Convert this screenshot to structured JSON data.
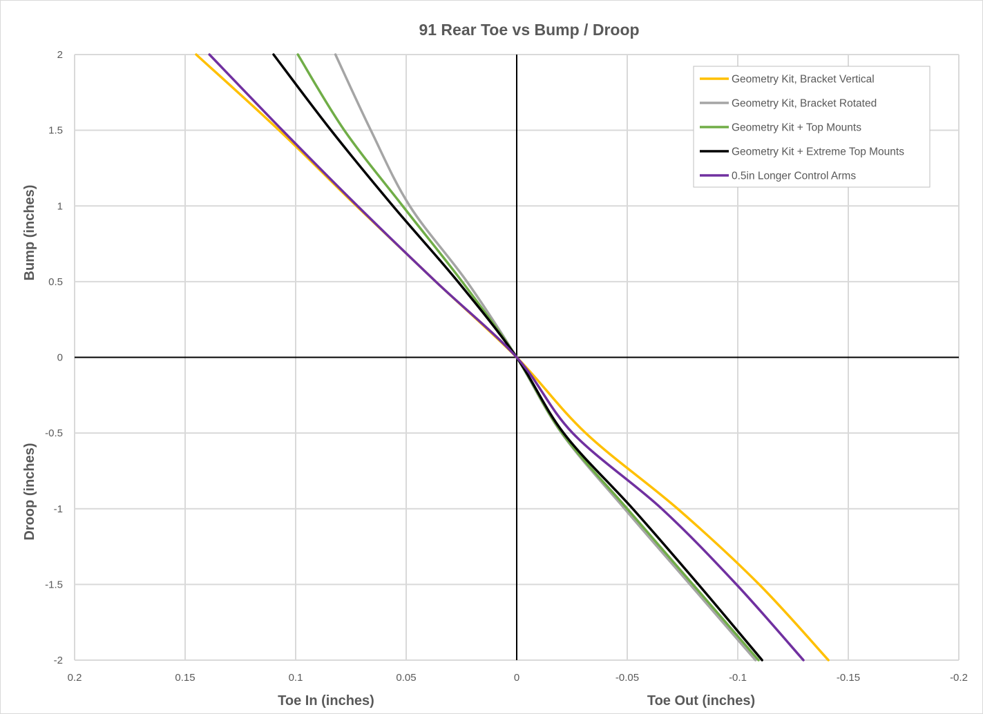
{
  "chart_data": {
    "type": "line",
    "title": "91 Rear Toe vs Bump / Droop",
    "xlabel_left": "Toe In (inches)",
    "xlabel_right": "Toe Out (inches)",
    "ylabel_top": "Bump (inches)",
    "ylabel_bottom": "Droop (inches)",
    "xlim": [
      0.2,
      -0.2
    ],
    "ylim": [
      -2,
      2
    ],
    "x_reversed": true,
    "grid": true,
    "legend_placement": "top-right",
    "x_ticks": [
      0.2,
      0.15,
      0.1,
      0.05,
      0,
      -0.05,
      -0.1,
      -0.15,
      -0.2
    ],
    "x_tick_labels": [
      "0.2",
      "0.15",
      "0.1",
      "0.05",
      "0",
      "-0.05",
      "-0.1",
      "-0.15",
      "-0.2"
    ],
    "y_ticks": [
      2,
      1.5,
      1,
      0.5,
      0,
      -0.5,
      -1,
      -1.5,
      -2
    ],
    "y_tick_labels": [
      "2",
      "1.5",
      "1",
      "0.5",
      "0",
      "-0.5",
      "-1",
      "-1.5",
      "-2"
    ],
    "y": [
      2,
      1.5,
      1,
      0.5,
      0,
      -0.5,
      -1,
      -1.5,
      -2
    ],
    "series": [
      {
        "name": "Geometry Kit, Bracket Vertical",
        "color": "#FFC000",
        "x": [
          0.145,
          0.1075,
          0.0725,
          0.0366,
          0,
          -0.0312,
          -0.0728,
          -0.1097,
          -0.141
        ]
      },
      {
        "name": "Geometry Kit, Bracket Rotated",
        "color": "#A5A5A5",
        "x": [
          0.082,
          0.066,
          0.0484,
          0.0225,
          0,
          -0.0203,
          -0.0488,
          -0.0784,
          -0.108
        ]
      },
      {
        "name": "Geometry Kit + Top Mounts",
        "color": "#70AD47",
        "x": [
          0.099,
          0.078,
          0.0516,
          0.0247,
          0,
          -0.0205,
          -0.05,
          -0.0797,
          -0.1094
        ]
      },
      {
        "name": "Geometry Kit + Extreme Top Mounts",
        "color": "#000000",
        "x": [
          0.11,
          0.084,
          0.056,
          0.0266,
          0,
          -0.0212,
          -0.0525,
          -0.0822,
          -0.111
        ]
      },
      {
        "name": "0.5in Longer Control Arms",
        "color": "#7030A0",
        "x": [
          0.139,
          0.106,
          0.072,
          0.0366,
          0,
          -0.0253,
          -0.0656,
          -0.0994,
          -0.1297
        ]
      }
    ]
  }
}
